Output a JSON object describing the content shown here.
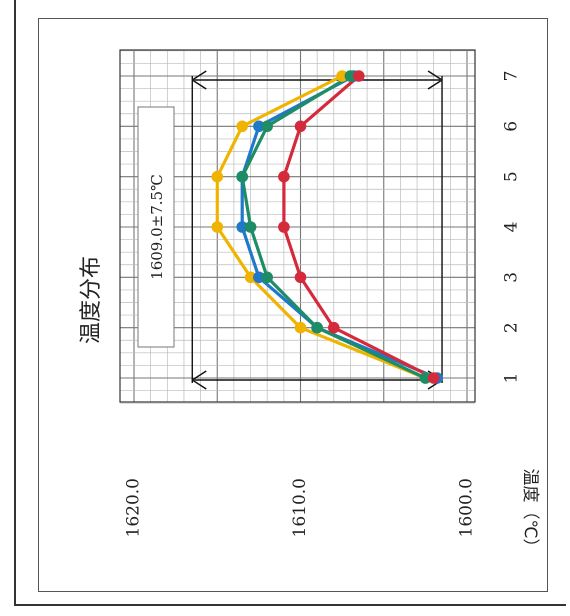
{
  "chart_data": {
    "type": "line",
    "title": "温度分布",
    "ylabel": "温度（℃）",
    "annotation": "1609.0±7.5℃",
    "x": [
      1,
      2,
      3,
      4,
      5,
      6,
      7
    ],
    "x_tick_labels": [
      "1",
      "2",
      "3",
      "4",
      "5",
      "6",
      "7"
    ],
    "ylim": [
      1600,
      1620
    ],
    "y_tick_labels": [
      "1620.0",
      "1610.0",
      "1600.0"
    ],
    "grid": true,
    "spec_band": [
      1601.5,
      1616.5
    ],
    "series": [
      {
        "color": "#d42a3c",
        "values": [
          1602.0,
          1608.0,
          1610.0,
          1611.0,
          1611.0,
          1610.0,
          1606.5
        ]
      },
      {
        "color": "#1e8c64",
        "values": [
          1602.5,
          1609.0,
          1612.0,
          1613.0,
          1613.5,
          1612.0,
          1607.0
        ]
      },
      {
        "color": "#1f78c8",
        "values": [
          1601.8,
          1609.0,
          1612.5,
          1613.5,
          1613.5,
          1612.5,
          1606.8
        ]
      },
      {
        "color": "#f0b400",
        "values": [
          1602.5,
          1610.0,
          1613.0,
          1615.0,
          1615.0,
          1613.5,
          1607.5
        ]
      }
    ]
  }
}
